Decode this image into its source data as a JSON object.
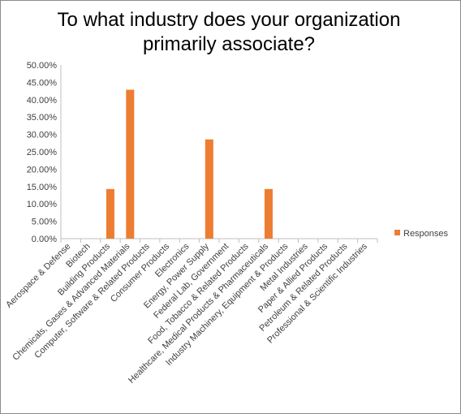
{
  "chart_data": {
    "type": "bar",
    "title": "To what industry does your organization primarily associate?",
    "categories": [
      "Aerospace & Defense",
      "Biotech",
      "Building Products",
      "Chemicals, Gases & Advanced Materials",
      "Computer, Software & Related Products",
      "Consumer Products",
      "Electronics",
      "Energy, Power Supply",
      "Federal Lab, Government",
      "Food, Tobacco & Related Products",
      "Healthcare, Medical Products & Pharmaceuticals",
      "Industry Machinery, Equipment & Products",
      "Metal Industries",
      "Paper & Allied Products",
      "Petroleum & Related Products",
      "Professional & Scientific Industries"
    ],
    "series": [
      {
        "name": "Responses",
        "color": "#ED7D31",
        "values": [
          0,
          0,
          14.29,
          42.86,
          0,
          0,
          0,
          28.57,
          0,
          0,
          14.29,
          0,
          0,
          0,
          0,
          0
        ]
      }
    ],
    "ylim": [
      0,
      50
    ],
    "yticks": [
      "0.00%",
      "5.00%",
      "10.00%",
      "15.00%",
      "20.00%",
      "25.00%",
      "30.00%",
      "35.00%",
      "40.00%",
      "45.00%",
      "50.00%"
    ],
    "grid": false,
    "legend": "right",
    "xlabel": "",
    "ylabel": ""
  }
}
